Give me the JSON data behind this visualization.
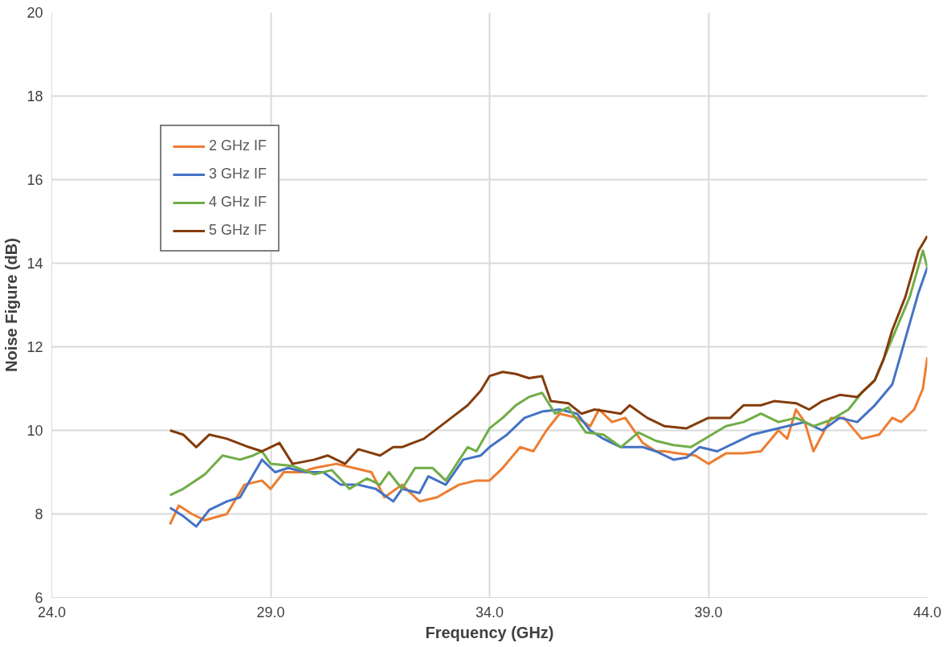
{
  "chart_data": {
    "type": "line",
    "xlabel": "Frequency (GHz)",
    "ylabel": "Noise Figure (dB)",
    "xlim": [
      24,
      44
    ],
    "ylim": [
      6,
      20
    ],
    "xticks": [
      {
        "value": 24,
        "label": "24.0"
      },
      {
        "value": 29,
        "label": "29.0"
      },
      {
        "value": 34,
        "label": "34.0"
      },
      {
        "value": 39,
        "label": "39.0"
      },
      {
        "value": 44,
        "label": "44.0"
      }
    ],
    "yticks": [
      6,
      8,
      10,
      12,
      14,
      16,
      18,
      20
    ],
    "grid": true,
    "legend": "top left",
    "marker": "none",
    "line_style": "solid",
    "series": [
      {
        "name": "2 GHz IF",
        "color": "#ed7d31",
        "x": [
          26.7,
          26.9,
          27.2,
          27.5,
          28.0,
          28.4,
          28.8,
          29.0,
          29.3,
          29.7,
          30.0,
          30.5,
          30.9,
          31.3,
          31.6,
          32.0,
          32.4,
          32.8,
          33.3,
          33.7,
          34.0,
          34.3,
          34.7,
          35.0,
          35.3,
          35.6,
          36.0,
          36.3,
          36.5,
          36.8,
          37.1,
          37.5,
          37.8,
          38.0,
          38.3,
          38.7,
          39.0,
          39.4,
          39.8,
          40.2,
          40.6,
          40.8,
          41.0,
          41.2,
          41.4,
          41.8,
          42.1,
          42.5,
          42.9,
          43.2,
          43.4,
          43.7,
          43.9,
          44.0
        ],
        "values": [
          7.75,
          8.2,
          8.0,
          7.85,
          8.0,
          8.7,
          8.8,
          8.6,
          9.0,
          9.0,
          9.1,
          9.2,
          9.1,
          9.0,
          8.4,
          8.7,
          8.3,
          8.4,
          8.7,
          8.8,
          8.8,
          9.1,
          9.6,
          9.5,
          10.0,
          10.4,
          10.3,
          10.1,
          10.5,
          10.2,
          10.3,
          9.7,
          9.5,
          9.5,
          9.45,
          9.4,
          9.2,
          9.45,
          9.45,
          9.5,
          10.0,
          9.8,
          10.5,
          10.2,
          9.5,
          10.3,
          10.3,
          9.8,
          9.9,
          10.3,
          10.2,
          10.5,
          11.0,
          11.75
        ]
      },
      {
        "name": "3 GHz IF",
        "color": "#4472c4",
        "x": [
          26.7,
          27.0,
          27.3,
          27.6,
          28.0,
          28.3,
          28.8,
          29.1,
          29.4,
          29.8,
          30.2,
          30.6,
          31.0,
          31.4,
          31.8,
          32.0,
          32.4,
          32.6,
          33.0,
          33.4,
          33.8,
          34.0,
          34.4,
          34.8,
          35.2,
          35.6,
          36.0,
          36.3,
          36.6,
          37.0,
          37.5,
          37.8,
          38.2,
          38.5,
          38.8,
          39.2,
          39.6,
          40.0,
          40.4,
          40.8,
          41.2,
          41.6,
          42.0,
          42.4,
          42.8,
          43.2,
          43.5,
          43.8,
          44.0
        ],
        "values": [
          8.15,
          7.95,
          7.7,
          8.1,
          8.3,
          8.4,
          9.3,
          9.0,
          9.1,
          9.0,
          9.0,
          8.7,
          8.7,
          8.6,
          8.3,
          8.6,
          8.5,
          8.9,
          8.7,
          9.3,
          9.4,
          9.6,
          9.9,
          10.3,
          10.45,
          10.5,
          10.4,
          10.0,
          9.8,
          9.6,
          9.6,
          9.5,
          9.3,
          9.35,
          9.6,
          9.5,
          9.7,
          9.9,
          10.0,
          10.1,
          10.2,
          10.0,
          10.3,
          10.2,
          10.6,
          11.1,
          12.2,
          13.3,
          13.9
        ]
      },
      {
        "name": "4 GHz IF",
        "color": "#70ad47",
        "x": [
          26.7,
          27.0,
          27.5,
          27.9,
          28.3,
          28.6,
          28.8,
          29.0,
          29.5,
          30.0,
          30.4,
          30.8,
          31.2,
          31.5,
          31.7,
          32.0,
          32.3,
          32.7,
          33.0,
          33.5,
          33.7,
          34.0,
          34.3,
          34.6,
          34.9,
          35.2,
          35.5,
          35.8,
          36.2,
          36.6,
          37.0,
          37.4,
          37.8,
          38.2,
          38.6,
          39.0,
          39.4,
          39.8,
          40.2,
          40.6,
          41.0,
          41.4,
          41.8,
          42.2,
          42.5,
          42.8,
          43.2,
          43.6,
          43.9,
          44.0
        ],
        "values": [
          8.45,
          8.6,
          8.95,
          9.4,
          9.3,
          9.4,
          9.5,
          9.2,
          9.15,
          8.95,
          9.05,
          8.6,
          8.85,
          8.7,
          9.0,
          8.6,
          9.1,
          9.1,
          8.8,
          9.6,
          9.5,
          10.05,
          10.3,
          10.6,
          10.8,
          10.9,
          10.4,
          10.55,
          9.95,
          9.9,
          9.6,
          9.95,
          9.75,
          9.65,
          9.6,
          9.85,
          10.1,
          10.2,
          10.4,
          10.2,
          10.3,
          10.1,
          10.25,
          10.5,
          10.9,
          11.2,
          12.2,
          13.2,
          14.3,
          13.9
        ]
      },
      {
        "name": "5 GHz IF",
        "color": "#843c0c",
        "x": [
          26.7,
          27.0,
          27.3,
          27.6,
          28.0,
          28.5,
          28.8,
          29.0,
          29.2,
          29.5,
          30.0,
          30.3,
          30.7,
          31.0,
          31.5,
          31.8,
          32.0,
          32.5,
          33.0,
          33.5,
          33.8,
          34.0,
          34.3,
          34.6,
          34.9,
          35.2,
          35.4,
          35.8,
          36.1,
          36.4,
          37.0,
          37.2,
          37.6,
          38.0,
          38.5,
          39.0,
          39.5,
          39.8,
          40.2,
          40.5,
          41.0,
          41.3,
          41.6,
          42.0,
          42.4,
          42.8,
          43.0,
          43.2,
          43.5,
          43.8,
          44.0
        ],
        "values": [
          10.0,
          9.9,
          9.6,
          9.9,
          9.8,
          9.6,
          9.5,
          9.6,
          9.7,
          9.2,
          9.3,
          9.4,
          9.2,
          9.55,
          9.4,
          9.6,
          9.6,
          9.8,
          10.2,
          10.6,
          10.95,
          11.3,
          11.4,
          11.35,
          11.25,
          11.3,
          10.7,
          10.65,
          10.4,
          10.5,
          10.4,
          10.6,
          10.3,
          10.1,
          10.05,
          10.3,
          10.3,
          10.6,
          10.6,
          10.7,
          10.65,
          10.5,
          10.7,
          10.85,
          10.8,
          11.2,
          11.7,
          12.4,
          13.2,
          14.3,
          14.65
        ]
      }
    ]
  }
}
